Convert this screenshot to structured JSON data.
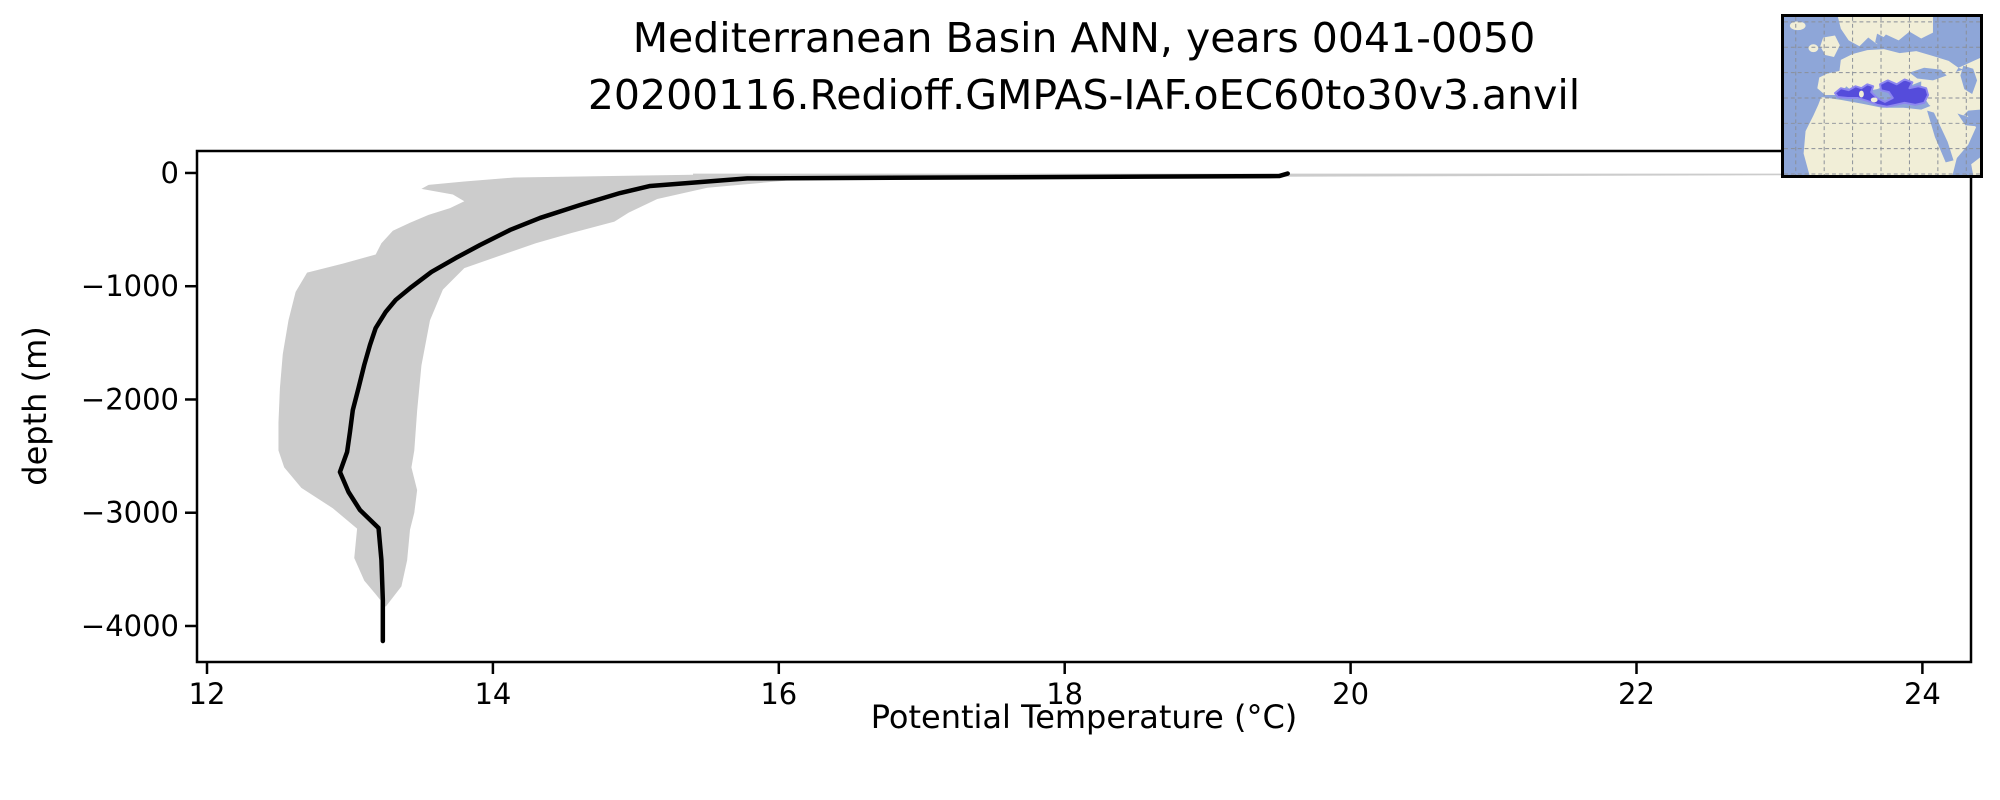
{
  "title": {
    "line1": "Mediterranean Basin ANN, years 0041-0050",
    "line2": "20200116.Redioff.GMPAS-IAF.oEC60to30v3.anvil"
  },
  "axes": {
    "xlabel": "Potential Temperature (°C)",
    "ylabel": "depth (m)"
  },
  "inset_map": {
    "highlight_region": "Mediterranean Sea",
    "colors": {
      "ocean": "#8EA6D8",
      "land": "#F1EED7",
      "highlight_fill": "#554CDB",
      "highlight_edge": "#8D87EF",
      "grid": "#8A8F98",
      "border": "#000000"
    }
  },
  "chart_data": {
    "type": "line",
    "title": "Mediterranean Basin ANN, years 0041-0050 | 20200116.Redioff.GMPAS-IAF.oEC60to30v3.anvil",
    "xlabel": "Potential Temperature (°C)",
    "ylabel": "depth (m)",
    "xlim": [
      11.93,
      24.34
    ],
    "ylim": [
      -4318,
      194
    ],
    "x_ticks": [
      12,
      14,
      16,
      18,
      20,
      22,
      24
    ],
    "y_ticks": [
      0,
      -1000,
      -2000,
      -3000,
      -4000
    ],
    "grid": false,
    "legend": "none",
    "line_color": "#000000",
    "envelope_color": "#cccccc",
    "series": [
      {
        "name": "annual-mean-profile",
        "kind": "line",
        "color": "#000000",
        "points": [
          [
            19.56,
            -5
          ],
          [
            19.5,
            -27
          ],
          [
            15.78,
            -48
          ],
          [
            15.1,
            -115
          ],
          [
            14.89,
            -177
          ],
          [
            14.61,
            -283
          ],
          [
            14.33,
            -397
          ],
          [
            14.12,
            -503
          ],
          [
            13.91,
            -636
          ],
          [
            13.74,
            -751
          ],
          [
            13.57,
            -874
          ],
          [
            13.43,
            -1007
          ],
          [
            13.32,
            -1121
          ],
          [
            13.25,
            -1227
          ],
          [
            13.18,
            -1369
          ],
          [
            13.14,
            -1519
          ],
          [
            13.1,
            -1695
          ],
          [
            13.06,
            -1898
          ],
          [
            13.02,
            -2093
          ],
          [
            13.0,
            -2287
          ],
          [
            12.98,
            -2464
          ],
          [
            12.93,
            -2640
          ],
          [
            12.99,
            -2817
          ],
          [
            13.07,
            -2976
          ],
          [
            13.2,
            -3135
          ],
          [
            13.22,
            -3417
          ],
          [
            13.23,
            -3770
          ],
          [
            13.23,
            -4133
          ]
        ]
      },
      {
        "name": "monthly-min-max-envelope",
        "kind": "band",
        "color": "#cccccc",
        "max_points": [
          [
            24.05,
            -6
          ],
          [
            24.05,
            -16
          ],
          [
            17.6,
            -40
          ],
          [
            16.1,
            -62
          ],
          [
            15.5,
            -130
          ],
          [
            15.15,
            -230
          ],
          [
            14.95,
            -350
          ],
          [
            14.85,
            -430
          ],
          [
            14.55,
            -530
          ],
          [
            14.3,
            -620
          ],
          [
            14.05,
            -730
          ],
          [
            13.8,
            -840
          ],
          [
            13.65,
            -1030
          ],
          [
            13.56,
            -1300
          ],
          [
            13.5,
            -1700
          ],
          [
            13.47,
            -2100
          ],
          [
            13.45,
            -2450
          ],
          [
            13.43,
            -2600
          ],
          [
            13.47,
            -2800
          ],
          [
            13.45,
            -3000
          ],
          [
            13.42,
            -3150
          ],
          [
            13.4,
            -3420
          ],
          [
            13.36,
            -3650
          ],
          [
            13.25,
            -3830
          ]
        ],
        "min_points": [
          [
            15.4,
            -6
          ],
          [
            15.4,
            -16
          ],
          [
            14.15,
            -40
          ],
          [
            13.8,
            -75
          ],
          [
            13.55,
            -105
          ],
          [
            13.5,
            -140
          ],
          [
            13.72,
            -190
          ],
          [
            13.8,
            -250
          ],
          [
            13.7,
            -310
          ],
          [
            13.55,
            -370
          ],
          [
            13.42,
            -440
          ],
          [
            13.3,
            -510
          ],
          [
            13.22,
            -620
          ],
          [
            13.18,
            -720
          ],
          [
            12.95,
            -800
          ],
          [
            12.7,
            -880
          ],
          [
            12.62,
            -1050
          ],
          [
            12.57,
            -1300
          ],
          [
            12.53,
            -1600
          ],
          [
            12.51,
            -1900
          ],
          [
            12.5,
            -2200
          ],
          [
            12.5,
            -2450
          ],
          [
            12.54,
            -2600
          ],
          [
            12.66,
            -2780
          ],
          [
            12.88,
            -2960
          ],
          [
            13.05,
            -3140
          ],
          [
            13.03,
            -3400
          ],
          [
            13.1,
            -3600
          ],
          [
            13.18,
            -3720
          ],
          [
            13.25,
            -3830
          ]
        ]
      }
    ]
  }
}
